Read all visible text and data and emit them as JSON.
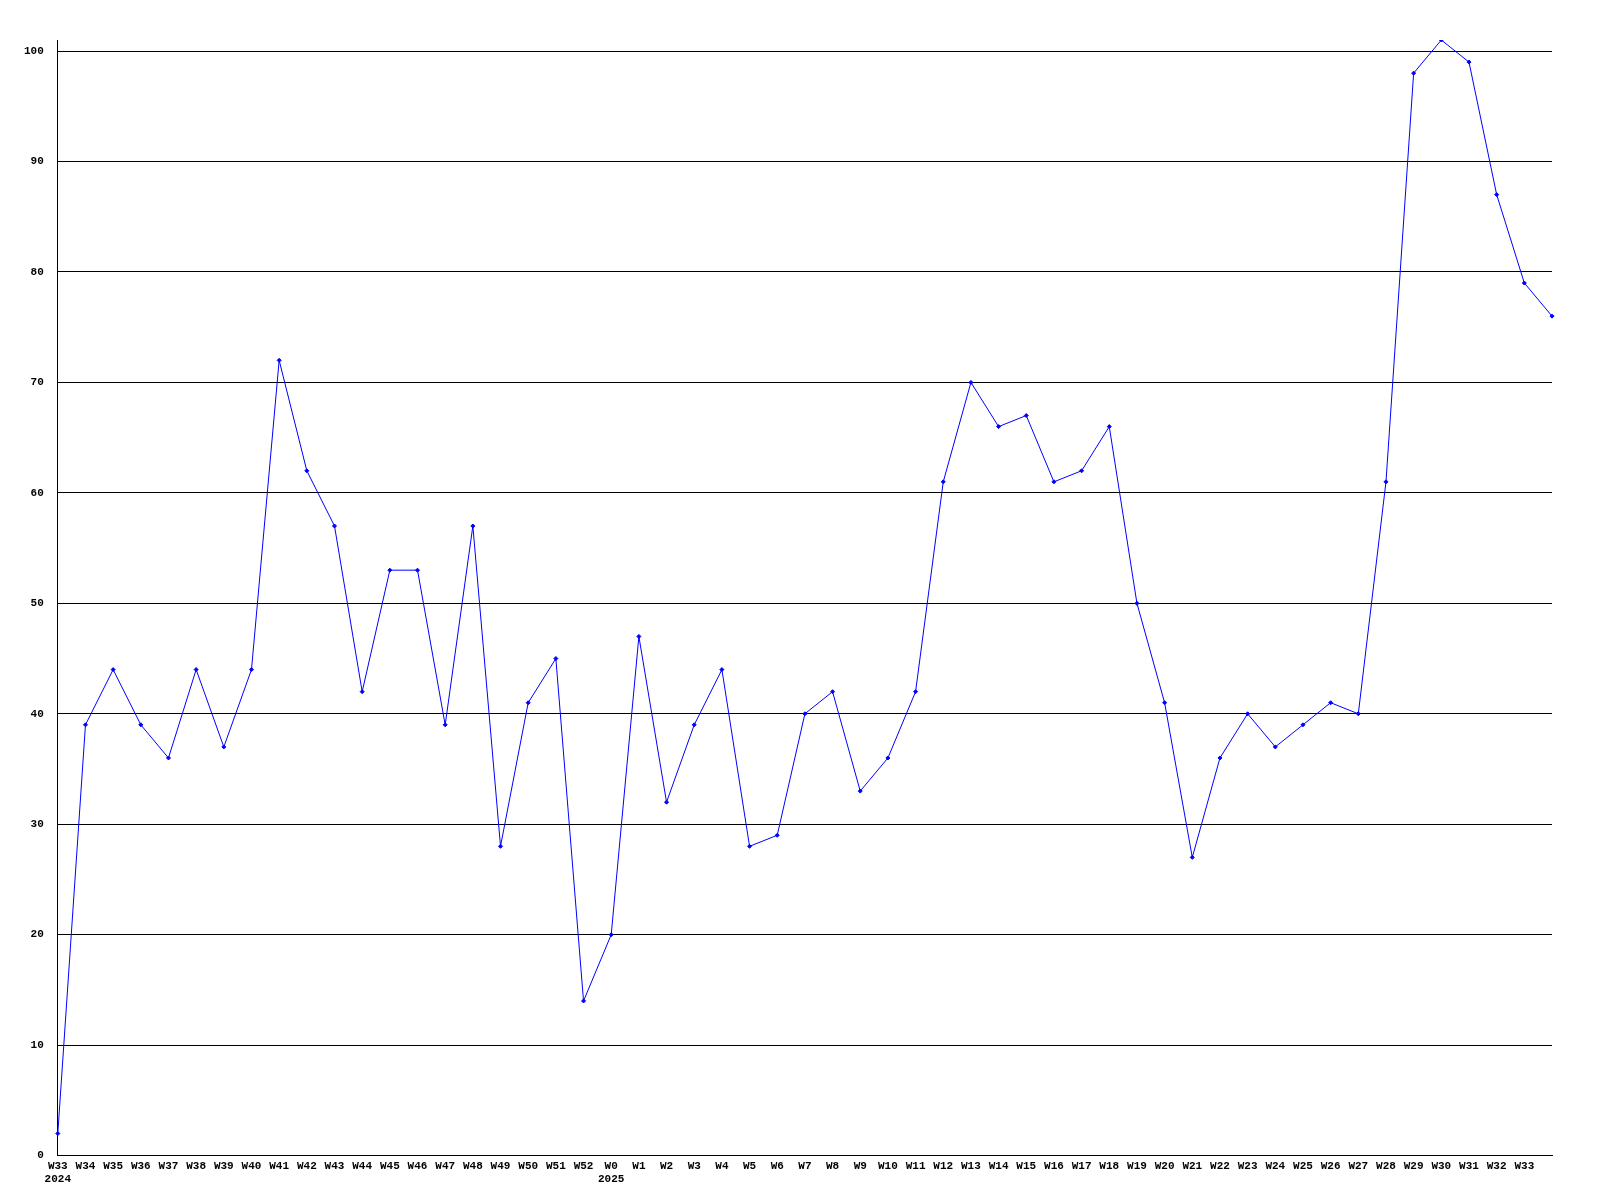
{
  "chart_data": {
    "type": "line",
    "categories": [
      "W33\n2024",
      "W34",
      "W35",
      "W36",
      "W37",
      "W38",
      "W39",
      "W40",
      "W41",
      "W42",
      "W43",
      "W44",
      "W45",
      "W46",
      "W47",
      "W48",
      "W49",
      "W50",
      "W51",
      "W52",
      "W0\n2025",
      "W1",
      "W2",
      "W3",
      "W4",
      "W5",
      "W6",
      "W7",
      "W8",
      "W9",
      "W10",
      "W11",
      "W12",
      "W13",
      "W14",
      "W15",
      "W16",
      "W17",
      "W18",
      "W19",
      "W20",
      "W21",
      "W22",
      "W23",
      "W24",
      "W25",
      "W26",
      "W27",
      "W28",
      "W29",
      "W30",
      "W31",
      "W32",
      "W33",
      null
    ],
    "series": [
      {
        "color": "#0000ff",
        "values": [
          2,
          39,
          44,
          39,
          36,
          44,
          37,
          44,
          72,
          62,
          57,
          42,
          53,
          53,
          39,
          57,
          28,
          41,
          45,
          14,
          20,
          47,
          32,
          39,
          44,
          28,
          29,
          40,
          42,
          33,
          36,
          42,
          61,
          70,
          66,
          67,
          61,
          62,
          66,
          50,
          41,
          27,
          36,
          40,
          37,
          39,
          41,
          40,
          61,
          98,
          101,
          99,
          87,
          79,
          76
        ]
      }
    ],
    "ylim": [
      0,
      101
    ],
    "yticks": [
      0,
      10,
      20,
      30,
      40,
      50,
      60,
      70,
      80,
      90,
      100
    ],
    "grid": "y",
    "legend": false,
    "marker": "diamond",
    "line_style": "solid"
  }
}
